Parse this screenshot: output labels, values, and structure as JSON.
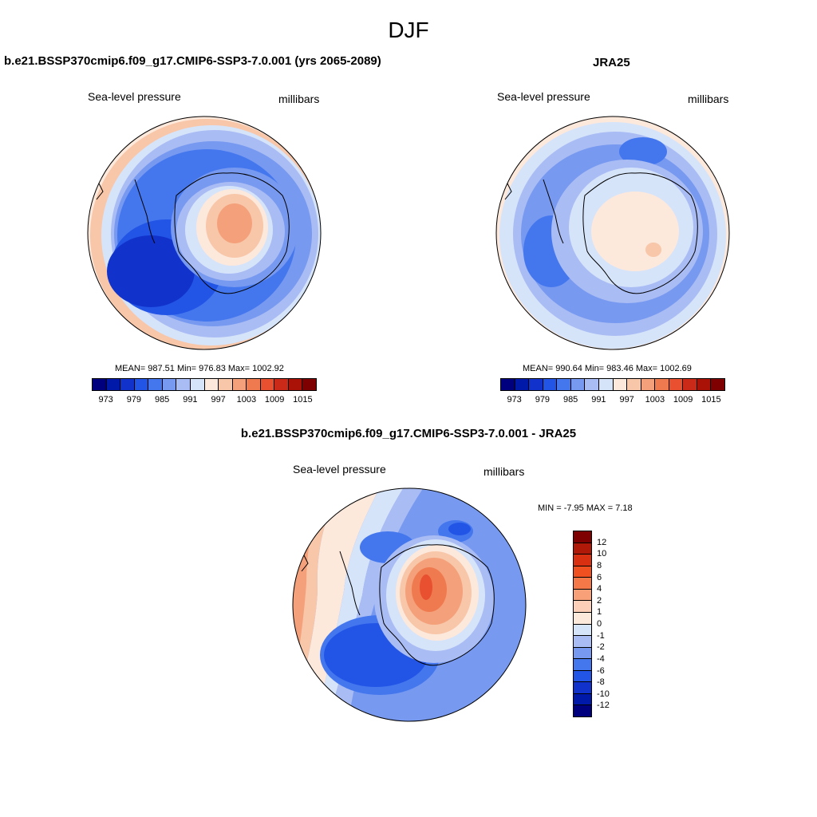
{
  "title": "DJF",
  "panels": {
    "left": {
      "title": "b.e21.BSSP370cmip6.f09_g17.CMIP6-SSP3-7.0.001 (yrs 2065-2089)",
      "variable": "Sea-level pressure",
      "units": "millibars",
      "stats": "MEAN= 987.51  Min= 976.83  Max= 1002.92",
      "colorbar_labels": [
        "973",
        "979",
        "985",
        "991",
        "997",
        "1003",
        "1009",
        "1015"
      ]
    },
    "right": {
      "title": "JRA25",
      "variable": "Sea-level pressure",
      "units": "millibars",
      "stats": "MEAN= 990.64  Min= 983.46  Max= 1002.69",
      "colorbar_labels": [
        "973",
        "979",
        "985",
        "991",
        "997",
        "1003",
        "1009",
        "1015"
      ]
    },
    "diff": {
      "title": "b.e21.BSSP370cmip6.f09_g17.CMIP6-SSP3-7.0.001 - JRA25",
      "variable": "Sea-level pressure",
      "units": "millibars",
      "stats": "MIN =  -7.95 MAX =   7.18",
      "colorbar_labels": [
        "12",
        "10",
        "8",
        "6",
        "4",
        "2",
        "1",
        "0",
        "-1",
        "-2",
        "-4",
        "-6",
        "-8",
        "-10",
        "-12"
      ]
    }
  },
  "colors": {
    "abs_scale": [
      "#00007f",
      "#0019a8",
      "#1133cc",
      "#2255e6",
      "#4477ee",
      "#7799f0",
      "#aabcf4",
      "#d6e4fa",
      "#fde8dc",
      "#f8c6a8",
      "#f4a07a",
      "#f07a50",
      "#e85030",
      "#cc2a18",
      "#aa1208",
      "#7f0000"
    ],
    "diff_scale": [
      "#7f0000",
      "#b01808",
      "#d83010",
      "#f05020",
      "#f47848",
      "#f8a078",
      "#fcd0b8",
      "#fde8dc",
      "#d6e4fa",
      "#aabcf4",
      "#7799f0",
      "#4477ee",
      "#2255e6",
      "#1133cc",
      "#0019a8",
      "#00007f"
    ],
    "land_outline": "#000000"
  }
}
